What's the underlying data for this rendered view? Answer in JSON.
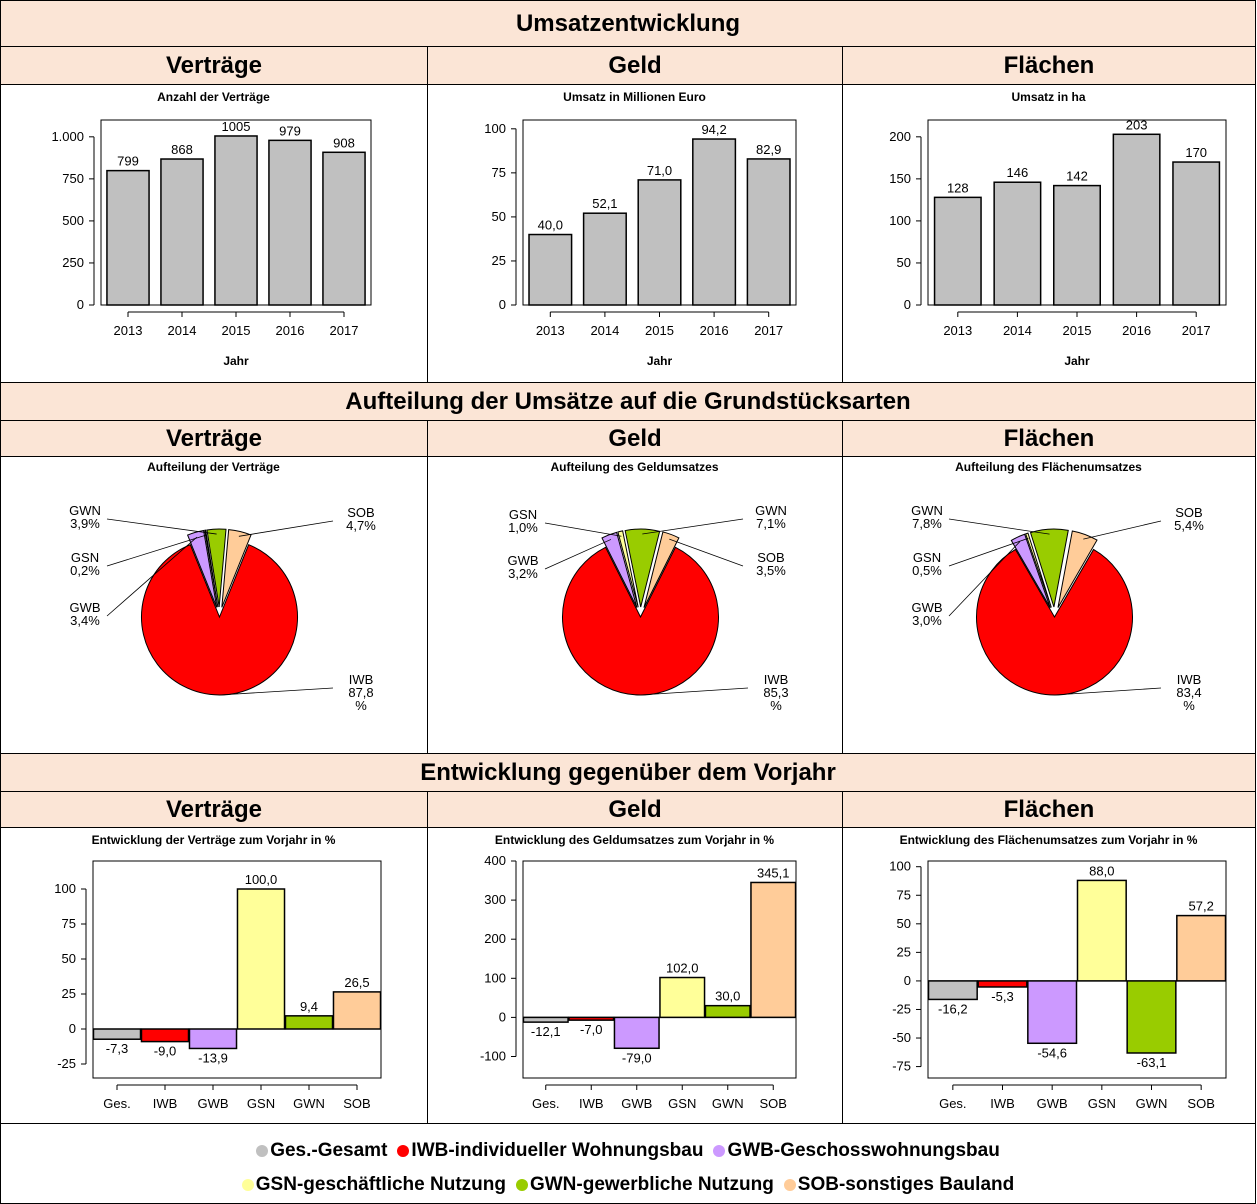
{
  "sections": [
    {
      "title": "Umsatzentwicklung",
      "subs": [
        "Verträge",
        "Geld",
        "Flächen"
      ]
    },
    {
      "title": "Aufteilung der Umsätze auf die Grundstücksarten",
      "subs": [
        "Verträge",
        "Geld",
        "Flächen"
      ]
    },
    {
      "title": "Entwicklung gegenüber dem Vorjahr",
      "subs": [
        "Verträge",
        "Geld",
        "Flächen"
      ]
    }
  ],
  "colors": {
    "Ges.": "#c0c0c0",
    "IWB": "#ff0000",
    "GWB": "#cc99ff",
    "GSN": "#ffff99",
    "GWN": "#99cc00",
    "SOB": "#ffcc99"
  },
  "chart_data": [
    {
      "type": "bar",
      "title": "Anzahl der Verträge",
      "xlabel": "Jahr",
      "categories": [
        "2013",
        "2014",
        "2015",
        "2016",
        "2017"
      ],
      "values": [
        799,
        868,
        1005,
        979,
        908
      ],
      "value_labels": [
        "799",
        "868",
        "1005",
        "979",
        "908"
      ],
      "ylim": [
        0,
        1100
      ],
      "yticks": [
        0,
        250,
        500,
        750,
        1000
      ],
      "ytick_labels": [
        "0",
        "250",
        "500",
        "750",
        "1.000"
      ]
    },
    {
      "type": "bar",
      "title": "Umsatz in Millionen Euro",
      "xlabel": "Jahr",
      "categories": [
        "2013",
        "2014",
        "2015",
        "2016",
        "2017"
      ],
      "values": [
        40.0,
        52.1,
        71.0,
        94.2,
        82.9
      ],
      "value_labels": [
        "40,0",
        "52,1",
        "71,0",
        "94,2",
        "82,9"
      ],
      "ylim": [
        0,
        105
      ],
      "yticks": [
        0,
        25,
        50,
        75,
        100
      ],
      "ytick_labels": [
        "0",
        "25",
        "50",
        "75",
        "100"
      ]
    },
    {
      "type": "bar",
      "title": "Umsatz in ha",
      "xlabel": "Jahr",
      "categories": [
        "2013",
        "2014",
        "2015",
        "2016",
        "2017"
      ],
      "values": [
        128,
        146,
        142,
        203,
        170
      ],
      "value_labels": [
        "128",
        "146",
        "142",
        "203",
        "170"
      ],
      "ylim": [
        0,
        220
      ],
      "yticks": [
        0,
        50,
        100,
        150,
        200
      ],
      "ytick_labels": [
        "0",
        "50",
        "100",
        "150",
        "200"
      ]
    },
    {
      "type": "pie",
      "title": "Aufteilung der Verträge",
      "slices": [
        {
          "name": "IWB",
          "value": 87.8,
          "label": [
            "IWB",
            "87,8",
            "%"
          ]
        },
        {
          "name": "GWB",
          "value": 3.4,
          "label": [
            "GWB",
            "3,4%"
          ]
        },
        {
          "name": "GSN",
          "value": 0.2,
          "label": [
            "GSN",
            "0,2%"
          ]
        },
        {
          "name": "GWN",
          "value": 3.9,
          "label": [
            "GWN",
            "3,9%"
          ]
        },
        {
          "name": "SOB",
          "value": 4.7,
          "label": [
            "SOB",
            "4,7%"
          ]
        }
      ]
    },
    {
      "type": "pie",
      "title": "Aufteilung des Geldumsatzes",
      "slices": [
        {
          "name": "IWB",
          "value": 85.3,
          "label": [
            "IWB",
            "85,3",
            "%"
          ]
        },
        {
          "name": "GWB",
          "value": 3.2,
          "label": [
            "GWB",
            "3,2%"
          ]
        },
        {
          "name": "GSN",
          "value": 1.0,
          "label": [
            "GSN",
            "1,0%"
          ]
        },
        {
          "name": "GWN",
          "value": 7.1,
          "label": [
            "GWN",
            "7,1%"
          ]
        },
        {
          "name": "SOB",
          "value": 3.5,
          "label": [
            "SOB",
            "3,5%"
          ]
        }
      ]
    },
    {
      "type": "pie",
      "title": "Aufteilung des Flächenumsatzes",
      "slices": [
        {
          "name": "IWB",
          "value": 83.4,
          "label": [
            "IWB",
            "83,4",
            "%"
          ]
        },
        {
          "name": "GWB",
          "value": 3.0,
          "label": [
            "GWB",
            "3,0%"
          ]
        },
        {
          "name": "GSN",
          "value": 0.5,
          "label": [
            "GSN",
            "0,5%"
          ]
        },
        {
          "name": "GWN",
          "value": 7.8,
          "label": [
            "GWN",
            "7,8%"
          ]
        },
        {
          "name": "SOB",
          "value": 5.4,
          "label": [
            "SOB",
            "5,4%"
          ]
        }
      ]
    },
    {
      "type": "bar",
      "title": "Entwicklung der Verträge zum Vorjahr in %",
      "categories": [
        "Ges.",
        "IWB",
        "GWB",
        "GSN",
        "GWN",
        "SOB"
      ],
      "values": [
        -7.3,
        -9.0,
        -13.9,
        100.0,
        9.4,
        26.5
      ],
      "value_labels": [
        "-7,3",
        "-9,0",
        "-13,9",
        "100,0",
        "9,4",
        "26,5"
      ],
      "ylim": [
        -35,
        120
      ],
      "yticks": [
        -25,
        0,
        25,
        50,
        75,
        100
      ],
      "ytick_labels": [
        "-25",
        "0",
        "25",
        "50",
        "75",
        "100"
      ]
    },
    {
      "type": "bar",
      "title": "Entwicklung des Geldumsatzes zum Vorjahr in %",
      "categories": [
        "Ges.",
        "IWB",
        "GWB",
        "GSN",
        "GWN",
        "SOB"
      ],
      "values": [
        -12.1,
        -7.0,
        -79.0,
        102.0,
        30.0,
        345.1
      ],
      "value_labels": [
        "-12,1",
        "-7,0",
        "-79,0",
        "102,0",
        "30,0",
        "345,1"
      ],
      "ylim": [
        -155,
        400
      ],
      "yticks": [
        -100,
        0,
        100,
        200,
        300,
        400
      ],
      "ytick_labels": [
        "-100",
        "0",
        "100",
        "200",
        "300",
        "400"
      ]
    },
    {
      "type": "bar",
      "title": "Entwicklung des Flächenumsatzes zum Vorjahr in %",
      "categories": [
        "Ges.",
        "IWB",
        "GWB",
        "GSN",
        "GWN",
        "SOB"
      ],
      "values": [
        -16.2,
        -5.3,
        -54.6,
        88.0,
        -63.1,
        57.2
      ],
      "value_labels": [
        "-16,2",
        "-5,3",
        "-54,6",
        "88,0",
        "-63,1",
        "57,2"
      ],
      "ylim": [
        -85,
        105
      ],
      "yticks": [
        -75,
        -50,
        -25,
        0,
        25,
        50,
        75,
        100
      ],
      "ytick_labels": [
        "-75",
        "-50",
        "-25",
        "0",
        "25",
        "50",
        "75",
        "100"
      ]
    }
  ],
  "legend": {
    "row1": [
      {
        "key": "Ges.",
        "text": "Ges.-Gesamt"
      },
      {
        "key": "IWB",
        "text": "IWB-individueller Wohnungsbau"
      },
      {
        "key": "GWB",
        "text": "GWB-Geschosswohnungsbau"
      }
    ],
    "row2": [
      {
        "key": "GSN",
        "text": "GSN-geschäftliche Nutzung"
      },
      {
        "key": "GWN",
        "text": "GWN-gewerbliche Nutzung"
      },
      {
        "key": "SOB",
        "text": "SOB-sonstiges Bauland"
      }
    ]
  }
}
